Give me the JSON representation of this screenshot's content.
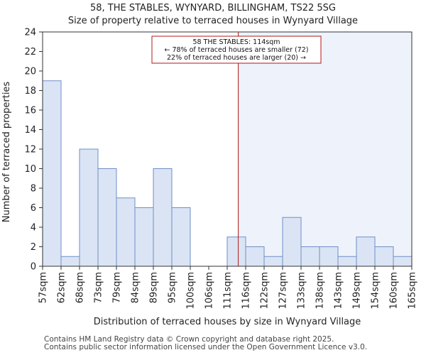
{
  "chart_data": {
    "type": "bar",
    "title": "58, THE STABLES, WYNYARD, BILLINGHAM, TS22 5SG",
    "subtitle": "Size of property relative to terraced houses in Wynyard Village",
    "xlabel": "Distribution of terraced houses by size in Wynyard Village",
    "ylabel": "Number of terraced properties",
    "bin_edges": [
      "57sqm",
      "62sqm",
      "68sqm",
      "73sqm",
      "79sqm",
      "84sqm",
      "89sqm",
      "95sqm",
      "100sqm",
      "106sqm",
      "111sqm",
      "116sqm",
      "122sqm",
      "127sqm",
      "133sqm",
      "138sqm",
      "143sqm",
      "149sqm",
      "154sqm",
      "160sqm",
      "165sqm"
    ],
    "values": [
      19,
      1,
      12,
      10,
      7,
      6,
      10,
      6,
      0,
      0,
      3,
      2,
      1,
      5,
      2,
      2,
      1,
      3,
      2,
      1
    ],
    "ylim": [
      0,
      24
    ],
    "yticks": [
      0,
      2,
      4,
      6,
      8,
      10,
      12,
      14,
      16,
      18,
      20,
      22,
      24
    ],
    "marker_value": 114,
    "marker_label": "58 THE STABLES: 114sqm",
    "annotation_lines": [
      "58 THE STABLES: 114sqm",
      "← 78% of terraced houses are smaller (72)",
      "22% of terraced houses are larger (20) →"
    ],
    "colors": {
      "bar_fill": "#dae4f4",
      "bar_edge": "#6e8fc6",
      "marker": "#b01818",
      "shade": "#eef2fb"
    }
  },
  "footer": {
    "line1": "Contains HM Land Registry data © Crown copyright and database right 2025.",
    "line2": "Contains public sector information licensed under the Open Government Licence v3.0."
  }
}
